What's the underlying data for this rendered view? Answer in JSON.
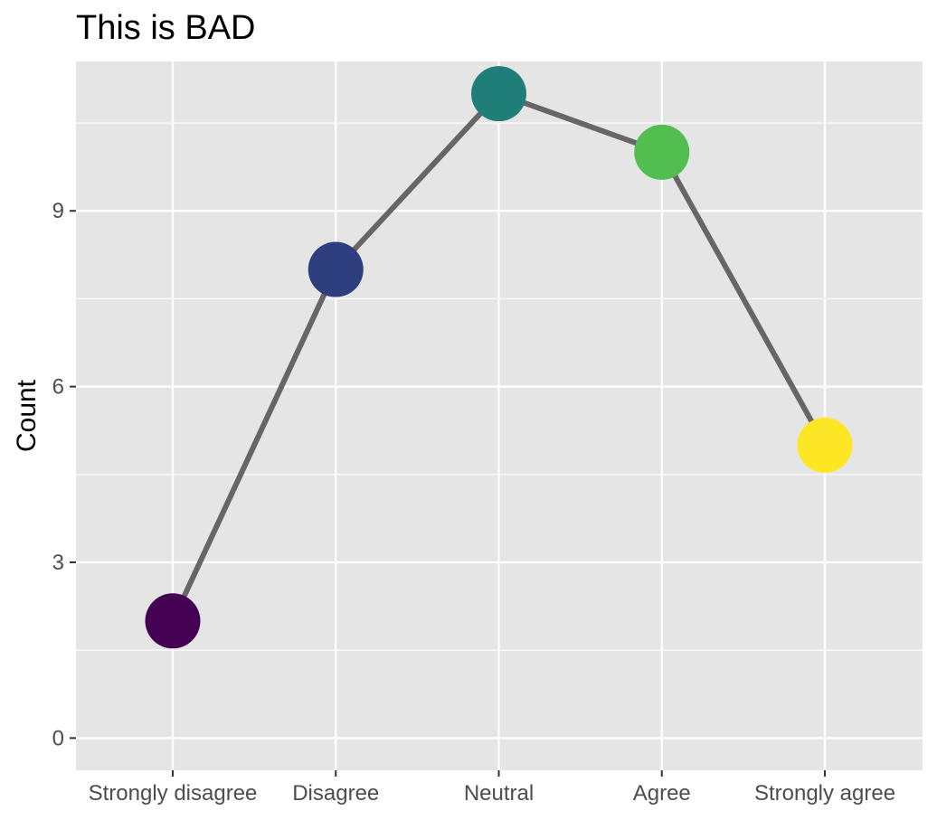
{
  "chart_data": {
    "type": "line",
    "title": "This is BAD",
    "xlabel": "",
    "ylabel": "Count",
    "categories": [
      "Strongly disagree",
      "Disagree",
      "Neutral",
      "Agree",
      "Strongly agree"
    ],
    "values": [
      2,
      8,
      11,
      10,
      5
    ],
    "point_colors": [
      "#440154",
      "#2e3e7e",
      "#1f7f78",
      "#52be4f",
      "#fde725"
    ],
    "line_color": "#666666",
    "ylim": [
      -0.55,
      11.55
    ],
    "yticks": [
      0,
      3,
      6,
      9
    ],
    "grid": true,
    "legend": "none",
    "panel_background": "#e5e5e5",
    "grid_color": "#ffffff"
  }
}
